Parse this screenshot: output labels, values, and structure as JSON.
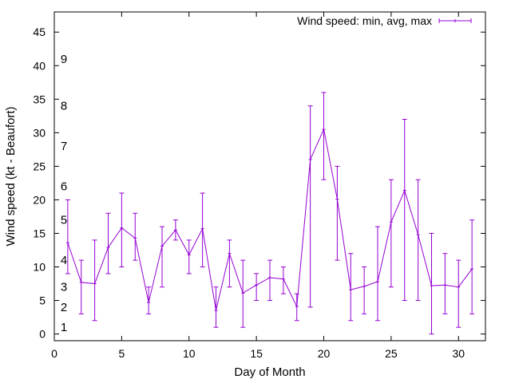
{
  "chart_data": {
    "type": "line",
    "title": "",
    "xlabel": "Day of Month",
    "ylabel": "Wind speed (kt - Beaufort)",
    "xlim": [
      0,
      32
    ],
    "ylim": [
      -1,
      48
    ],
    "xticks": [
      0,
      5,
      10,
      15,
      20,
      25,
      30
    ],
    "yticks": [
      0,
      5,
      10,
      15,
      20,
      25,
      30,
      35,
      40,
      45
    ],
    "grid": false,
    "legend_position": "top-right",
    "series": [
      {
        "name": "Wind speed: min, avg, max",
        "color": "#9400d3",
        "error_bars": true,
        "points": [
          {
            "x": 1,
            "min": 9,
            "avg": 13.6,
            "max": 20
          },
          {
            "x": 2,
            "min": 3,
            "avg": 7.7,
            "max": 11
          },
          {
            "x": 3,
            "min": 2,
            "avg": 7.5,
            "max": 14
          },
          {
            "x": 4,
            "min": 9,
            "avg": 12.9,
            "max": 18
          },
          {
            "x": 5,
            "min": 10,
            "avg": 15.8,
            "max": 21
          },
          {
            "x": 6,
            "min": 11,
            "avg": 14.3,
            "max": 18
          },
          {
            "x": 7,
            "min": 3,
            "avg": 4.7,
            "max": 7
          },
          {
            "x": 8,
            "min": 7,
            "avg": 13.1,
            "max": 16
          },
          {
            "x": 9,
            "min": 14,
            "avg": 15.5,
            "max": 17
          },
          {
            "x": 10,
            "min": 9,
            "avg": 11.8,
            "max": 14
          },
          {
            "x": 11,
            "min": 10,
            "avg": 15.7,
            "max": 21
          },
          {
            "x": 12,
            "min": 1,
            "avg": 3.5,
            "max": 7
          },
          {
            "x": 13,
            "min": 7,
            "avg": 12,
            "max": 14
          },
          {
            "x": 14,
            "min": 1,
            "avg": 6.1,
            "max": 11
          },
          {
            "x": 15,
            "min": 5,
            "avg": 7.3,
            "max": 9
          },
          {
            "x": 16,
            "min": 5,
            "avg": 8.4,
            "max": 11
          },
          {
            "x": 17,
            "min": 6,
            "avg": 8.2,
            "max": 10
          },
          {
            "x": 18,
            "min": 2,
            "avg": 4.1,
            "max": 6
          },
          {
            "x": 19,
            "min": 4,
            "avg": 26,
            "max": 34
          },
          {
            "x": 20,
            "min": 23,
            "avg": 30.5,
            "max": 36
          },
          {
            "x": 21,
            "min": 11,
            "avg": 20.1,
            "max": 25
          },
          {
            "x": 22,
            "min": 2,
            "avg": 6.6,
            "max": 12
          },
          {
            "x": 23,
            "min": 3,
            "avg": 7.1,
            "max": 10
          },
          {
            "x": 24,
            "min": 2,
            "avg": 7.8,
            "max": 16
          },
          {
            "x": 25,
            "min": 7,
            "avg": 16.7,
            "max": 23
          },
          {
            "x": 26,
            "min": 5,
            "avg": 21.4,
            "max": 32
          },
          {
            "x": 27,
            "min": 5,
            "avg": 14.8,
            "max": 23
          },
          {
            "x": 28,
            "min": 0,
            "avg": 7.2,
            "max": 15
          },
          {
            "x": 29,
            "min": 3,
            "avg": 7.3,
            "max": 12
          },
          {
            "x": 30,
            "min": 1,
            "avg": 7,
            "max": 11
          },
          {
            "x": 31,
            "min": 3,
            "avg": 9.7,
            "max": 17
          }
        ]
      }
    ],
    "beaufort_labels": [
      {
        "label": "1",
        "value": 1
      },
      {
        "label": "2",
        "value": 4
      },
      {
        "label": "3",
        "value": 7
      },
      {
        "label": "4",
        "value": 11
      },
      {
        "label": "5",
        "value": 17
      },
      {
        "label": "6",
        "value": 22
      },
      {
        "label": "7",
        "value": 28
      },
      {
        "label": "8",
        "value": 34
      },
      {
        "label": "9",
        "value": 41
      }
    ]
  }
}
